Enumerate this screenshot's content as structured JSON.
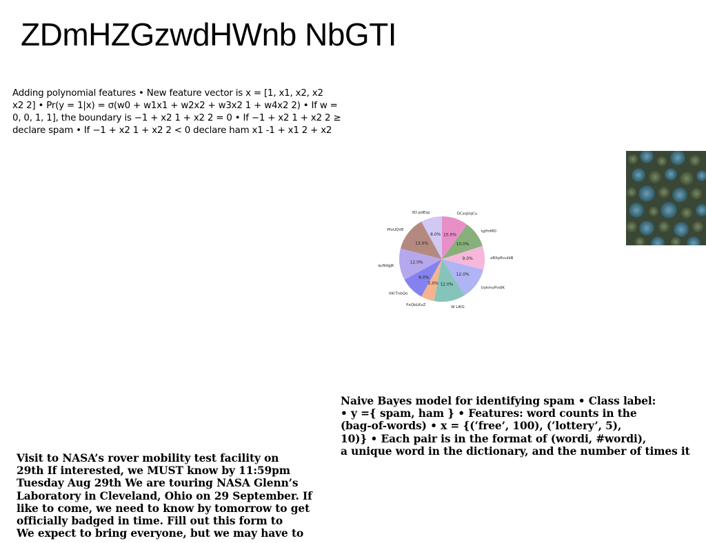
{
  "page": {
    "title": "ZDmHZGzwdHWnb NbGTI"
  },
  "polynomial_text": {
    "lines": [
      "Adding polynomial features • New feature vector is x = [1, x1, x2, x2",
      "x2 2] • Pr(y = 1|x) = σ(w0 + w1x1 + w2x2 + w3x2 1 + w4x2 2) • If w =",
      "0, 0, 1, 1], the boundary is −1 + x2 1 + x2 2 = 0 • If −1 + x2 1 + x2 2 ≥",
      "declare spam • If −1 + x2 1 + x2 2 < 0 declare ham x1 -1 + x1 2 + x2"
    ]
  },
  "photo": {
    "description_icon": "aerial-forest-photo"
  },
  "chart_data": {
    "type": "pie",
    "start_angle_deg": 90,
    "direction": "clockwise",
    "slices": [
      {
        "label": "OCxqUqCu",
        "value": 10.0,
        "pct": "10.0%",
        "color": "#e88fc8"
      },
      {
        "label": "tgHnMO",
        "value": 10.0,
        "pct": "10.0%",
        "color": "#88b07a"
      },
      {
        "label": "xBXpRvuIkB",
        "value": 9.0,
        "pct": "9.0%",
        "color": "#f6b7da"
      },
      {
        "label": "UykmyPvdiK",
        "value": 12.0,
        "pct": "12.0%",
        "color": "#aeb4f4"
      },
      {
        "label": "W LlKG",
        "value": 12.0,
        "pct": "12.0%",
        "color": "#86c4bb"
      },
      {
        "label": "PxQbLKvZ",
        "value": 5.0,
        "pct": "5.0%",
        "color": "#f5b48e"
      },
      {
        "label": "XKrTnbQo",
        "value": 9.0,
        "pct": "9.0%",
        "color": "#8482ee"
      },
      {
        "label": "PquNdgjK",
        "value": 12.0,
        "pct": "12.0%",
        "color": "#b6a8ec"
      },
      {
        "label": "PfvUQVE",
        "value": 13.0,
        "pct": "13.0%",
        "color": "#b48a80"
      },
      {
        "label": "XO pdEsp",
        "value": 8.0,
        "pct": "8.0%",
        "color": "#d2c8f4"
      }
    ]
  },
  "bayes_text": {
    "lines": [
      "Naive Bayes model for identifying spam • Class label:",
      "• y ={ spam, ham } • Features: word counts in the",
      "(bag-of-words) • x = {(‘free’, 100), (‘lottery’, 5),",
      "10)} • Each pair is in the format of (wordi, #wordi),",
      "a unique word in the dictionary, and the number of times it"
    ]
  },
  "nasa_text": {
    "lines": [
      "Visit to NASA’s rover mobility test facility on",
      "29th If interested, we MUST know by 11:59pm",
      "Tuesday Aug 29th We are touring NASA Glenn’s",
      "Laboratory in Cleveland, Ohio on 29 September. If",
      "like to come, we need to know by tomorrow to get",
      "officially badged in time. Fill out this form to",
      "We expect to bring everyone, but we may have to"
    ]
  }
}
